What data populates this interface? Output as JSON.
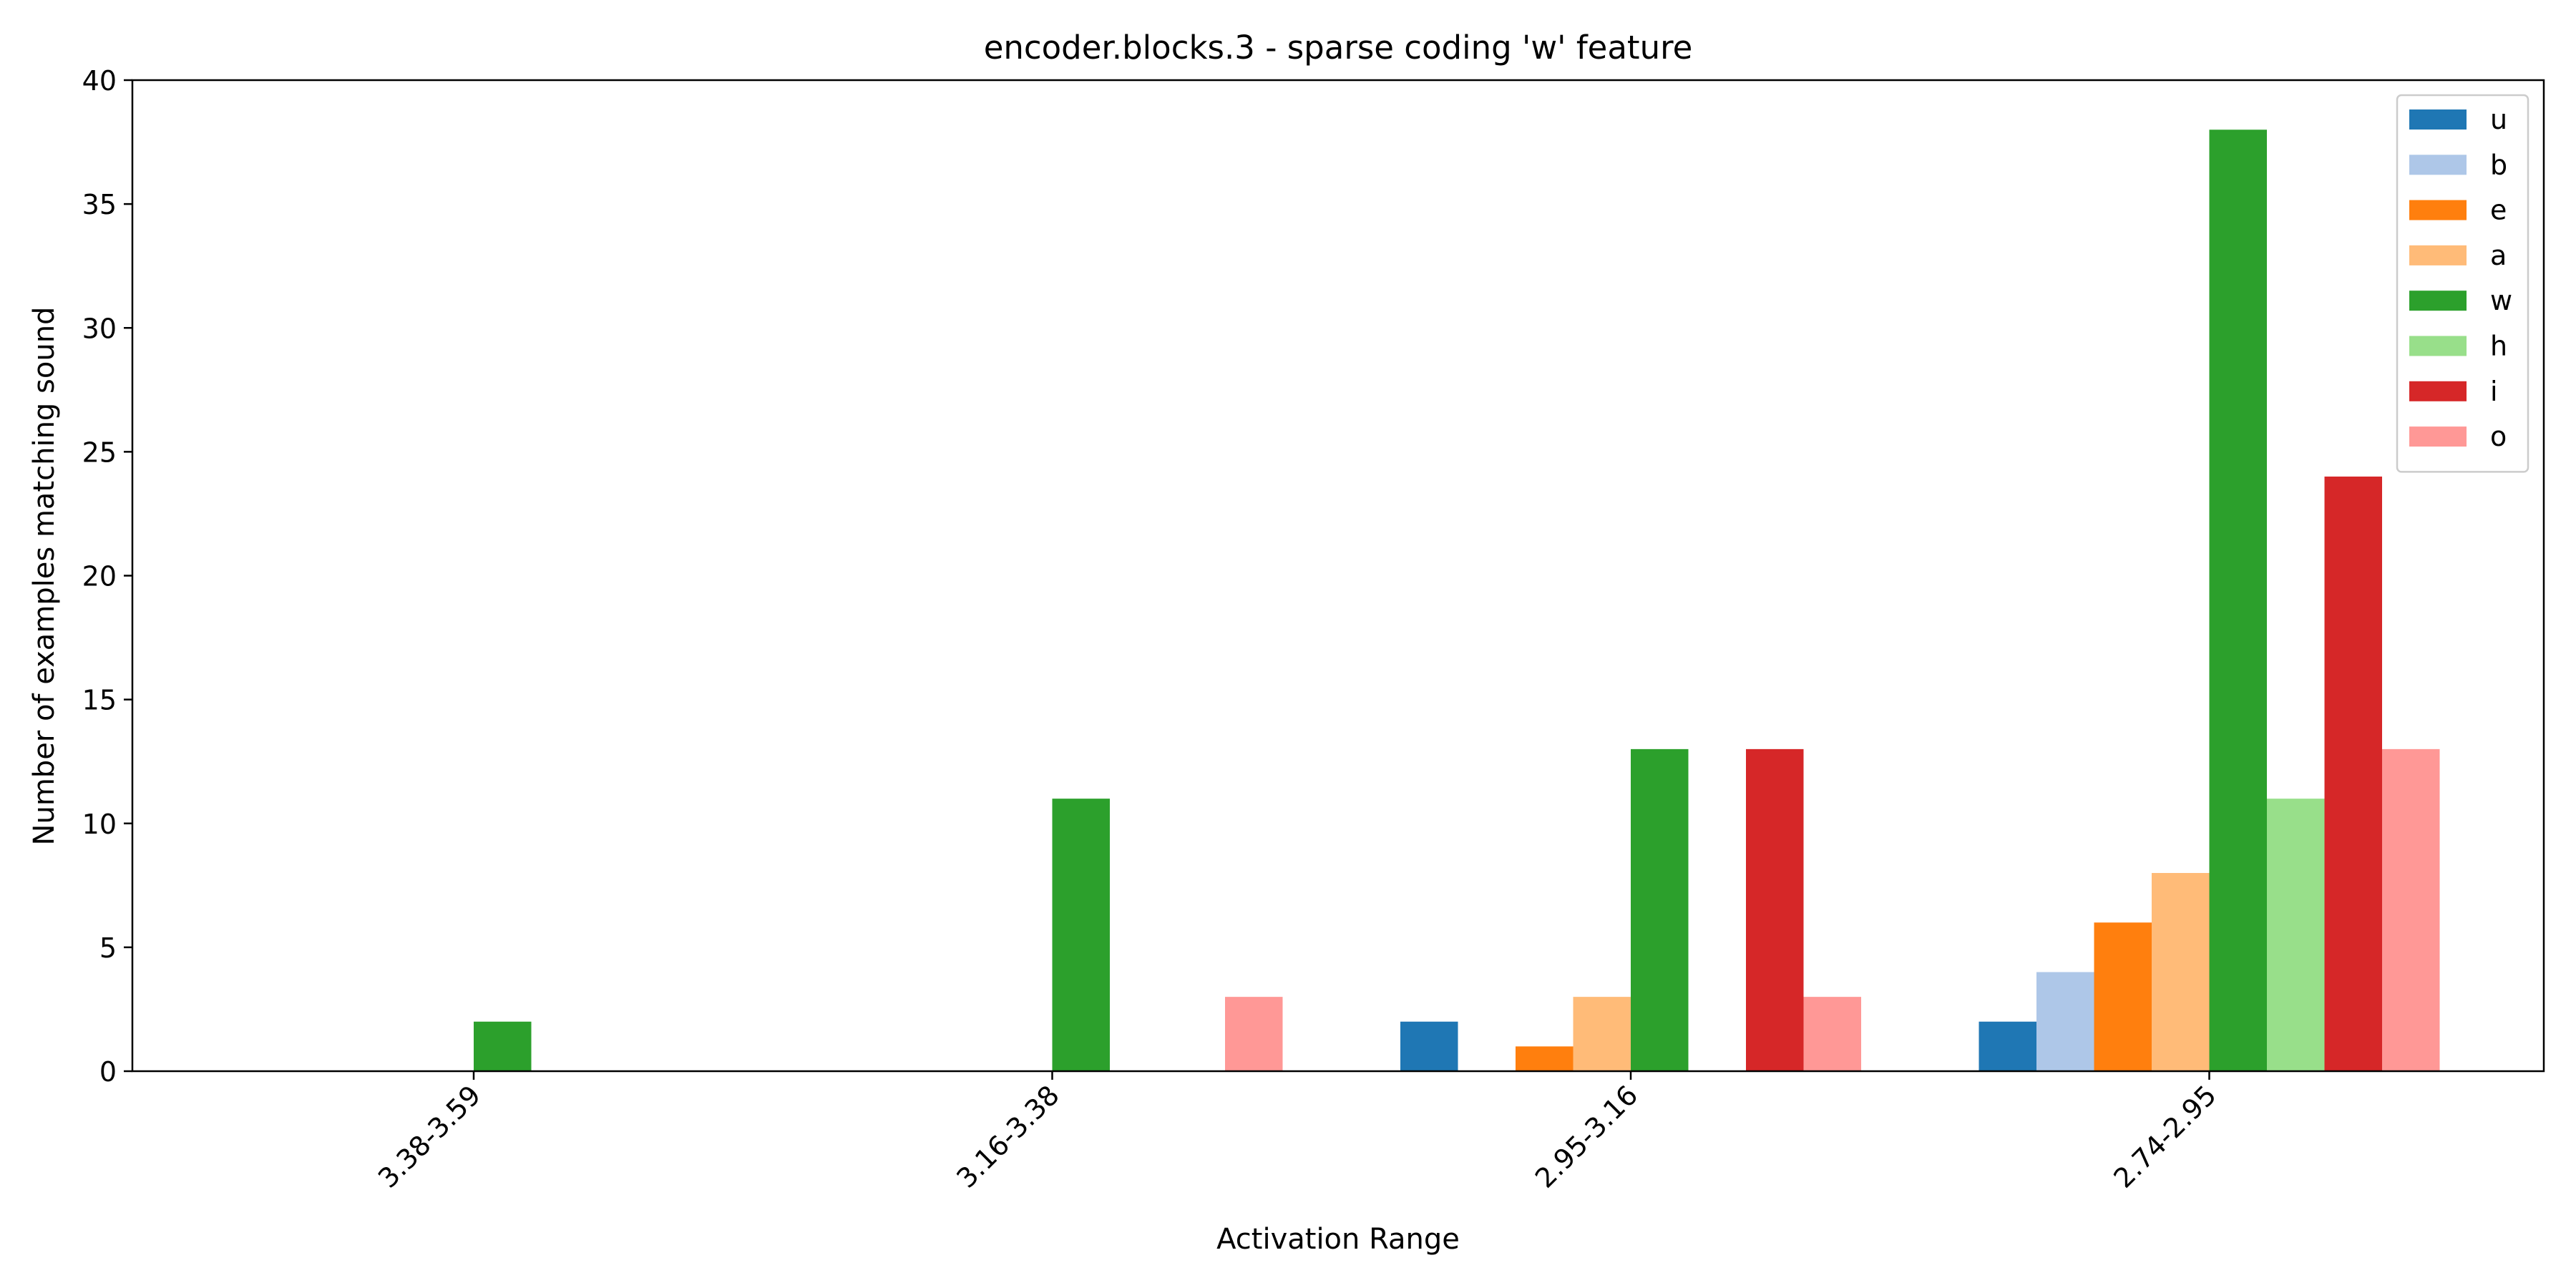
{
  "chart_data": {
    "type": "bar",
    "title": "encoder.blocks.3 - sparse coding 'w' feature",
    "xlabel": "Activation Range",
    "ylabel": "Number of examples matching sound",
    "categories": [
      "3.38-3.59",
      "3.16-3.38",
      "2.95-3.16",
      "2.74-2.95"
    ],
    "ylim": [
      0,
      40
    ],
    "yticks": [
      0,
      5,
      10,
      15,
      20,
      25,
      30,
      35,
      40
    ],
    "grid": false,
    "legend_position": "top-right",
    "series": [
      {
        "name": "u",
        "color": "#1f77b4",
        "values": [
          0,
          0,
          2,
          2
        ]
      },
      {
        "name": "b",
        "color": "#aec7e8",
        "values": [
          0,
          0,
          0,
          4
        ]
      },
      {
        "name": "e",
        "color": "#ff7f0e",
        "values": [
          0,
          0,
          1,
          6
        ]
      },
      {
        "name": "a",
        "color": "#ffbb78",
        "values": [
          0,
          0,
          3,
          8
        ]
      },
      {
        "name": "w",
        "color": "#2ca02c",
        "values": [
          2,
          11,
          13,
          38
        ]
      },
      {
        "name": "h",
        "color": "#98df8a",
        "values": [
          0,
          0,
          0,
          11
        ]
      },
      {
        "name": "i",
        "color": "#d62728",
        "values": [
          0,
          0,
          13,
          24
        ]
      },
      {
        "name": "o",
        "color": "#ff9896",
        "values": [
          0,
          3,
          3,
          13
        ]
      }
    ]
  }
}
